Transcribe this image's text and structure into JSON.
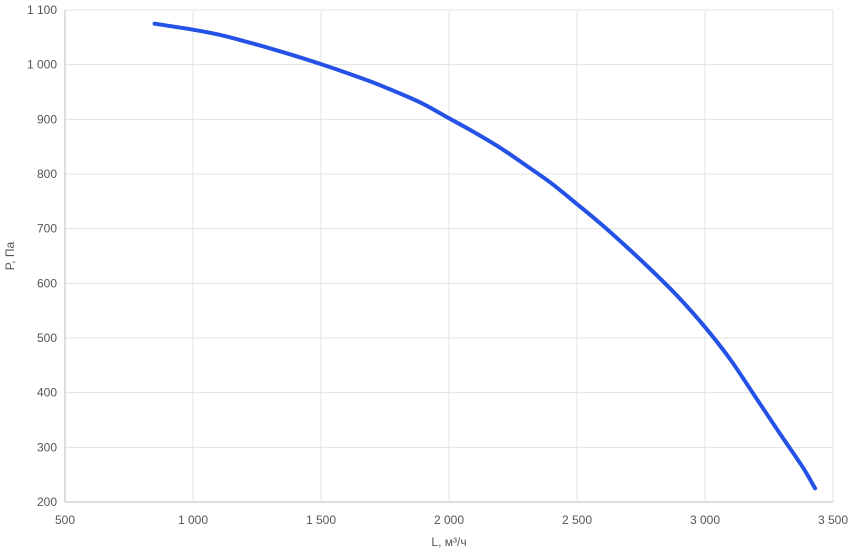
{
  "chart_data": {
    "type": "line",
    "title": "",
    "xlabel": "L, м³/ч",
    "ylabel": "P, Па",
    "xlim": [
      500,
      3500
    ],
    "ylim": [
      200,
      1100
    ],
    "xticks": [
      500,
      1000,
      1500,
      2000,
      2500,
      3000,
      3500
    ],
    "xtick_labels": [
      "500",
      "1 000",
      "1 500",
      "2 000",
      "2 500",
      "3 000",
      "3 500"
    ],
    "yticks": [
      200,
      300,
      400,
      500,
      600,
      700,
      800,
      900,
      1000,
      1100
    ],
    "ytick_labels": [
      "200",
      "300",
      "400",
      "500",
      "600",
      "700",
      "800",
      "900",
      "1 000",
      "1 100"
    ],
    "grid": true,
    "legend": "none",
    "series": [
      {
        "color": "#2451e6",
        "points": [
          [
            850,
            1075
          ],
          [
            1000,
            1064
          ],
          [
            1100,
            1055
          ],
          [
            1200,
            1043
          ],
          [
            1300,
            1030
          ],
          [
            1400,
            1016
          ],
          [
            1500,
            1001
          ],
          [
            1600,
            985
          ],
          [
            1700,
            968
          ],
          [
            1800,
            949
          ],
          [
            1900,
            928
          ],
          [
            2000,
            902
          ],
          [
            2100,
            876
          ],
          [
            2200,
            848
          ],
          [
            2300,
            816
          ],
          [
            2400,
            783
          ],
          [
            2500,
            745
          ],
          [
            2600,
            706
          ],
          [
            2700,
            664
          ],
          [
            2800,
            620
          ],
          [
            2900,
            573
          ],
          [
            3000,
            520
          ],
          [
            3100,
            460
          ],
          [
            3200,
            390
          ],
          [
            3300,
            320
          ],
          [
            3380,
            265
          ],
          [
            3430,
            225
          ]
        ]
      }
    ]
  }
}
